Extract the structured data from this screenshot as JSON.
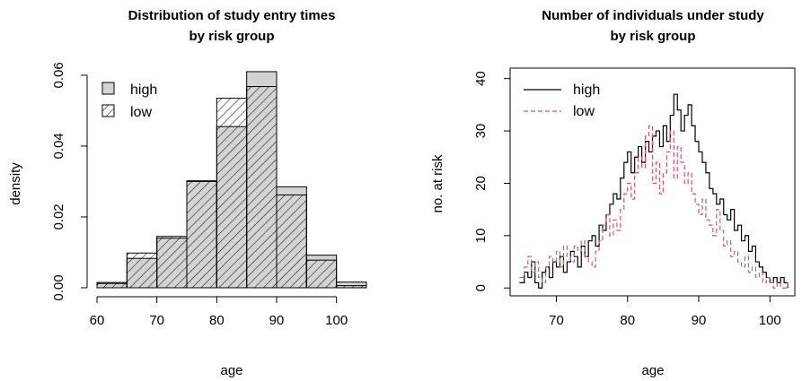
{
  "chart_data": [
    {
      "type": "bar",
      "title_lines": [
        "Distribution of study entry times",
        "by risk group"
      ],
      "xlabel": "age",
      "ylabel": "density",
      "xlim": [
        60,
        105
      ],
      "ylim": [
        0,
        0.062
      ],
      "x_ticks": [
        "60",
        "70",
        "80",
        "90",
        "100"
      ],
      "y_ticks": [
        "0.00",
        "0.02",
        "0.04",
        "0.06"
      ],
      "bin_edges": [
        60,
        65,
        70,
        75,
        80,
        85,
        90,
        95,
        100,
        105
      ],
      "series": [
        {
          "name": "high",
          "fill": "#d3d3d3",
          "pattern": "solid",
          "values": [
            0.0012,
            0.0083,
            0.014,
            0.03,
            0.0455,
            0.061,
            0.0285,
            0.0092,
            0.0016
          ]
        },
        {
          "name": "low",
          "fill": "none",
          "pattern": "hatch",
          "values": [
            0.0015,
            0.0098,
            0.0145,
            0.0302,
            0.0535,
            0.0568,
            0.0262,
            0.0078,
            0.0006
          ]
        }
      ],
      "legend": {
        "position": "top-left",
        "items": [
          "high",
          "low"
        ]
      },
      "grid": false
    },
    {
      "type": "line",
      "title_lines": [
        "Number of individuals under study",
        "by risk group"
      ],
      "xlabel": "age",
      "ylabel": "no. at risk",
      "xlim": [
        63.5,
        103.5
      ],
      "ylim": [
        -1.5,
        42
      ],
      "x_ticks": [
        "70",
        "80",
        "90",
        "100"
      ],
      "y_ticks": [
        "0",
        "10",
        "20",
        "30",
        "40"
      ],
      "series": [
        {
          "name": "high",
          "color": "#000000",
          "dash": "solid",
          "x": [
            64.8,
            65.5,
            66.0,
            66.5,
            67.0,
            67.5,
            68.0,
            68.5,
            69.0,
            69.5,
            70.0,
            70.5,
            71.0,
            71.5,
            72.0,
            72.5,
            73.0,
            73.5,
            74.0,
            74.5,
            75.0,
            75.5,
            76.0,
            76.5,
            77.0,
            77.5,
            78.0,
            78.5,
            79.0,
            79.5,
            80.0,
            80.5,
            81.0,
            81.5,
            82.0,
            82.5,
            83.0,
            83.5,
            84.0,
            84.5,
            85.0,
            85.5,
            86.0,
            86.5,
            87.0,
            87.5,
            88.0,
            88.5,
            89.0,
            89.5,
            90.0,
            90.5,
            91.0,
            91.5,
            92.0,
            92.5,
            93.0,
            93.5,
            94.0,
            94.5,
            95.0,
            95.5,
            96.0,
            96.5,
            97.0,
            97.5,
            98.0,
            98.5,
            99.0,
            99.5,
            100.0,
            100.5,
            101.0,
            101.5,
            102.0,
            102.5
          ],
          "y": [
            1,
            3,
            2,
            5,
            1,
            0,
            3,
            4,
            2,
            5,
            4,
            6,
            3,
            5,
            7,
            6,
            4,
            8,
            6,
            9,
            10,
            8,
            12,
            11,
            14,
            16,
            18,
            17,
            21,
            24,
            26,
            22,
            25,
            27,
            24,
            28,
            26,
            29,
            30,
            27,
            31,
            28,
            33,
            37,
            34,
            30,
            33,
            35,
            31,
            28,
            26,
            24,
            22,
            19,
            18,
            16,
            17,
            14,
            13,
            15,
            11,
            12,
            9,
            10,
            7,
            8,
            5,
            4,
            3,
            2,
            1,
            2,
            1,
            2,
            1,
            0
          ]
        },
        {
          "name": "low",
          "color": "#df536b",
          "dash": "dashed",
          "x": [
            64.8,
            65.5,
            66.0,
            66.5,
            67.0,
            67.5,
            68.0,
            68.5,
            69.0,
            69.5,
            70.0,
            70.5,
            71.0,
            71.5,
            72.0,
            72.5,
            73.0,
            73.5,
            74.0,
            74.5,
            75.0,
            75.5,
            76.0,
            76.5,
            77.0,
            77.5,
            78.0,
            78.5,
            79.0,
            79.5,
            80.0,
            80.5,
            81.0,
            81.5,
            82.0,
            82.5,
            83.0,
            83.5,
            84.0,
            84.5,
            85.0,
            85.5,
            86.0,
            86.5,
            87.0,
            87.5,
            88.0,
            88.5,
            89.0,
            89.5,
            90.0,
            90.5,
            91.0,
            91.5,
            92.0,
            92.5,
            93.0,
            93.5,
            94.0,
            94.5,
            95.0,
            95.5,
            96.0,
            96.5,
            97.0,
            97.5,
            98.0,
            98.5,
            99.0,
            99.5,
            100.0,
            100.5,
            101.0,
            101.5,
            102.0,
            102.5,
            103.0
          ],
          "y": [
            2,
            4,
            6,
            3,
            5,
            2,
            1,
            4,
            6,
            5,
            7,
            4,
            8,
            6,
            5,
            8,
            7,
            9,
            6,
            5,
            4,
            7,
            9,
            12,
            14,
            10,
            13,
            11,
            15,
            18,
            20,
            17,
            22,
            25,
            23,
            29,
            31,
            20,
            24,
            18,
            22,
            26,
            30,
            21,
            27,
            24,
            20,
            22,
            18,
            16,
            14,
            17,
            13,
            12,
            10,
            15,
            11,
            8,
            9,
            6,
            7,
            5,
            4,
            6,
            3,
            4,
            2,
            3,
            1,
            2,
            1,
            0,
            1,
            0,
            0,
            1,
            1
          ]
        }
      ],
      "legend": {
        "position": "top-left",
        "items": [
          "high",
          "low"
        ]
      },
      "grid": false
    }
  ]
}
